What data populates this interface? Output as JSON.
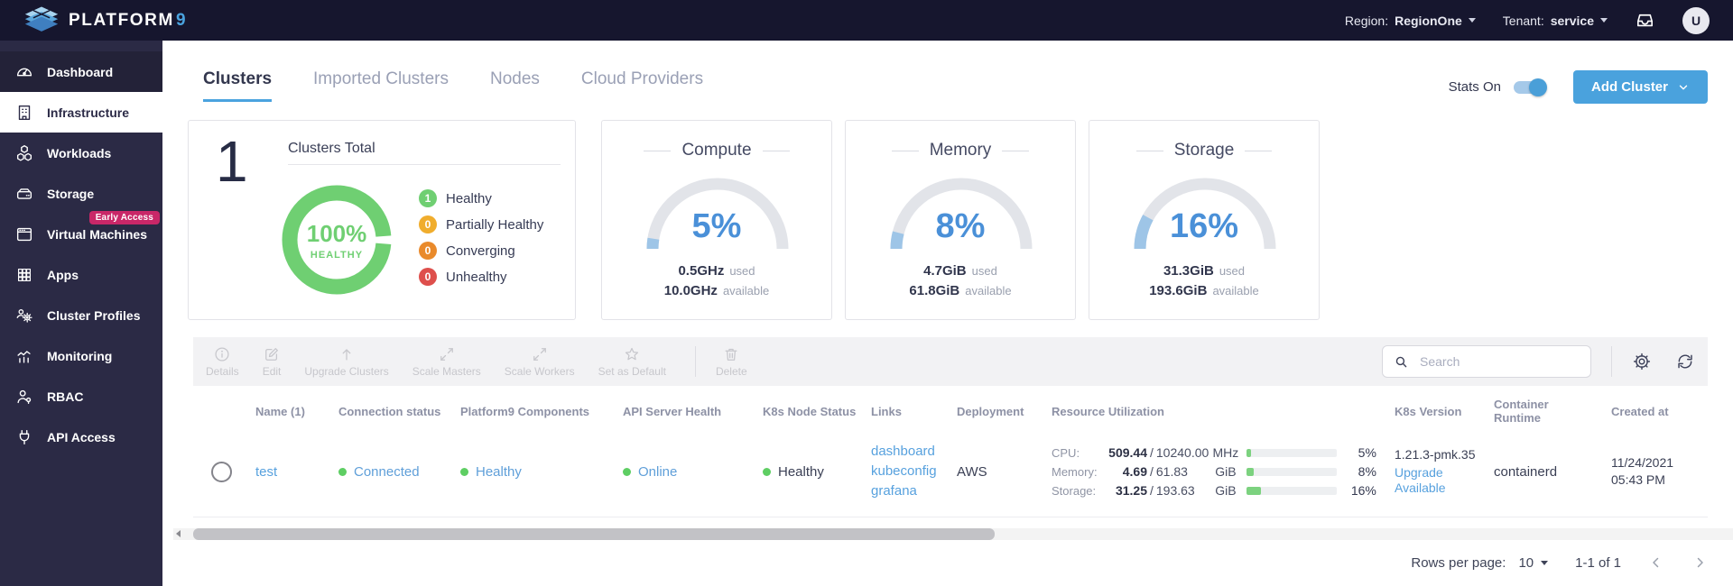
{
  "topbar": {
    "logo_text": "PLATFORM",
    "logo_digit": "9",
    "region_label": "Region:",
    "region_value": "RegionOne",
    "tenant_label": "Tenant:",
    "tenant_value": "service",
    "avatar_initial": "U"
  },
  "sidebar": {
    "items": [
      {
        "label": "Dashboard"
      },
      {
        "label": "Infrastructure"
      },
      {
        "label": "Workloads"
      },
      {
        "label": "Storage"
      },
      {
        "label": "Virtual Machines",
        "badge": "Early Access"
      },
      {
        "label": "Apps"
      },
      {
        "label": "Cluster Profiles"
      },
      {
        "label": "Monitoring"
      },
      {
        "label": "RBAC"
      },
      {
        "label": "API Access"
      }
    ]
  },
  "tabs": [
    {
      "label": "Clusters"
    },
    {
      "label": "Imported Clusters"
    },
    {
      "label": "Nodes"
    },
    {
      "label": "Cloud Providers"
    }
  ],
  "header_actions": {
    "stats_label": "Stats On",
    "add_cluster_label": "Add Cluster"
  },
  "cards": {
    "clusters_total": {
      "count": "1",
      "title": "Clusters Total",
      "donut_center_value": "100%",
      "donut_center_label": "HEALTHY",
      "donut_color": "#6fcf72",
      "legend": [
        {
          "count": "1",
          "label": "Healthy",
          "color": "#6fcf72"
        },
        {
          "count": "0",
          "label": "Partially Healthy",
          "color": "#f0ad2d"
        },
        {
          "count": "0",
          "label": "Converging",
          "color": "#e98a2b"
        },
        {
          "count": "0",
          "label": "Unhealthy",
          "color": "#de4f4c"
        }
      ]
    },
    "gauges": [
      {
        "title": "Compute",
        "percent": 5,
        "percent_label": "5%",
        "used_value": "0.5GHz",
        "used_label": "used",
        "available_value": "10.0GHz",
        "available_label": "available"
      },
      {
        "title": "Memory",
        "percent": 8,
        "percent_label": "8%",
        "used_value": "4.7GiB",
        "used_label": "used",
        "available_value": "61.8GiB",
        "available_label": "available"
      },
      {
        "title": "Storage",
        "percent": 16,
        "percent_label": "16%",
        "used_value": "31.3GiB",
        "used_label": "used",
        "available_value": "193.6GiB",
        "available_label": "available"
      }
    ]
  },
  "toolbar": {
    "actions": [
      {
        "label": "Details"
      },
      {
        "label": "Edit"
      },
      {
        "label": "Upgrade Clusters"
      },
      {
        "label": "Scale Masters"
      },
      {
        "label": "Scale Workers"
      },
      {
        "label": "Set as Default"
      },
      {
        "label": "Delete"
      }
    ],
    "search_placeholder": "Search"
  },
  "table": {
    "columns": [
      "Name (1)",
      "Connection status",
      "Platform9 Components",
      "API Server Health",
      "K8s Node Status",
      "Links",
      "Deployment",
      "Resource Utilization",
      "K8s Version",
      "Container Runtime",
      "Created at"
    ],
    "sep": "/",
    "row": {
      "name": "test",
      "connection_status": "Connected",
      "platform9_components": "Healthy",
      "api_server_health": "Online",
      "k8s_node_status": "Healthy",
      "links": [
        "dashboard",
        "kubeconfig",
        "grafana"
      ],
      "deployment": "AWS",
      "utilization": [
        {
          "label": "CPU:",
          "used": "509.44",
          "total": "10240.00",
          "unit": "MHz",
          "percent": 5,
          "percent_label": "5%"
        },
        {
          "label": "Memory:",
          "used": "4.69",
          "total": "61.83",
          "unit": "GiB",
          "percent": 8,
          "percent_label": "8%"
        },
        {
          "label": "Storage:",
          "used": "31.25",
          "total": "193.63",
          "unit": "GiB",
          "percent": 16,
          "percent_label": "16%"
        }
      ],
      "k8s_version": "1.21.3-pmk.35",
      "upgrade_link": "Upgrade Available",
      "container_runtime": "containerd",
      "created_date": "11/24/2021",
      "created_time": "05:43 PM"
    }
  },
  "pagination": {
    "rows_per_page_label": "Rows per page:",
    "rows_per_page": "10",
    "range": "1-1 of 1"
  }
}
